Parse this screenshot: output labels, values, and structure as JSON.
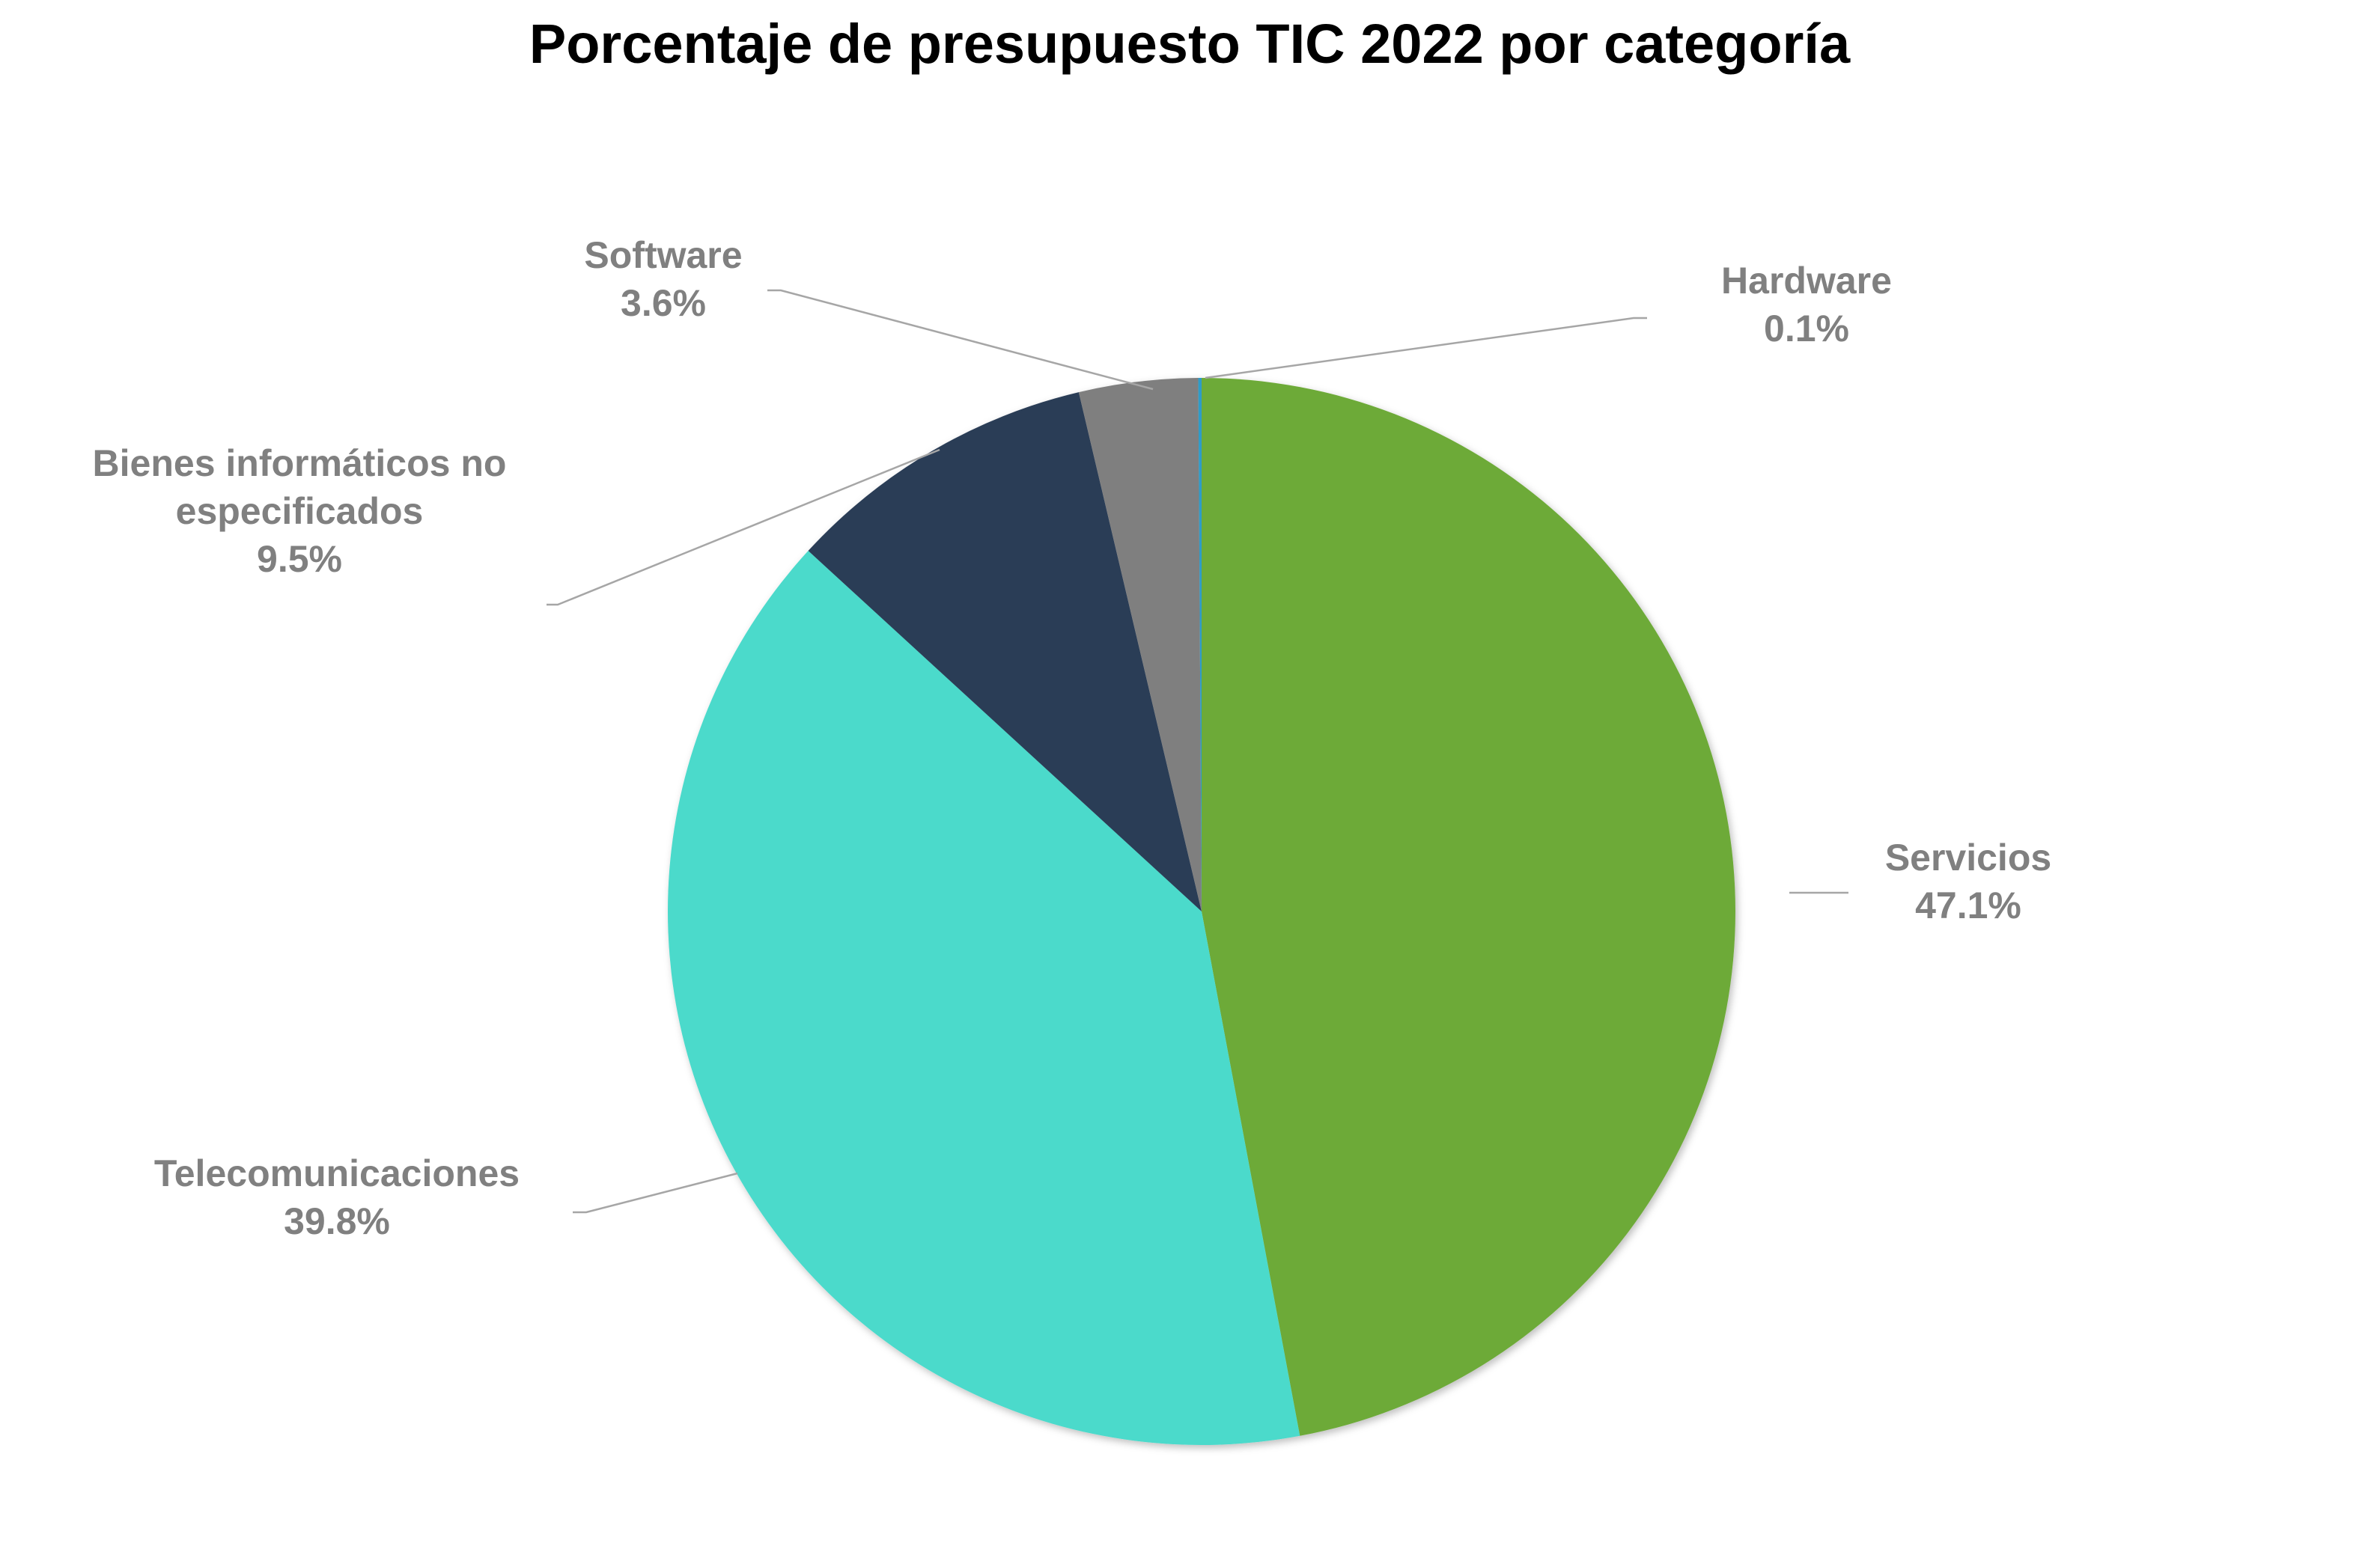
{
  "chart_data": {
    "type": "pie",
    "title": "Porcentaje de presupuesto TIC 2022 por categoría",
    "start_angle_deg": 0,
    "direction": "clockwise",
    "slices": [
      {
        "label_lines": [
          "Servicios"
        ],
        "value": 47.1,
        "value_label": "47.1%",
        "color": "#6DAA37"
      },
      {
        "label_lines": [
          "Telecomunicaciones"
        ],
        "value": 39.8,
        "value_label": "39.8%",
        "color": "#4BDACB"
      },
      {
        "label_lines": [
          "Bienes informáticos no",
          "especificados"
        ],
        "value": 9.5,
        "value_label": "9.5%",
        "color": "#2B3D57"
      },
      {
        "label_lines": [
          "Software"
        ],
        "value": 3.6,
        "value_label": "3.6%",
        "color": "#7F7F7F"
      },
      {
        "label_lines": [
          "Hardware"
        ],
        "value": 0.1,
        "value_label": "0.1%",
        "color": "#2E9CC8"
      }
    ],
    "legend": "none",
    "label_color": "#808080",
    "leader_line_color": "#A6A6A6"
  }
}
